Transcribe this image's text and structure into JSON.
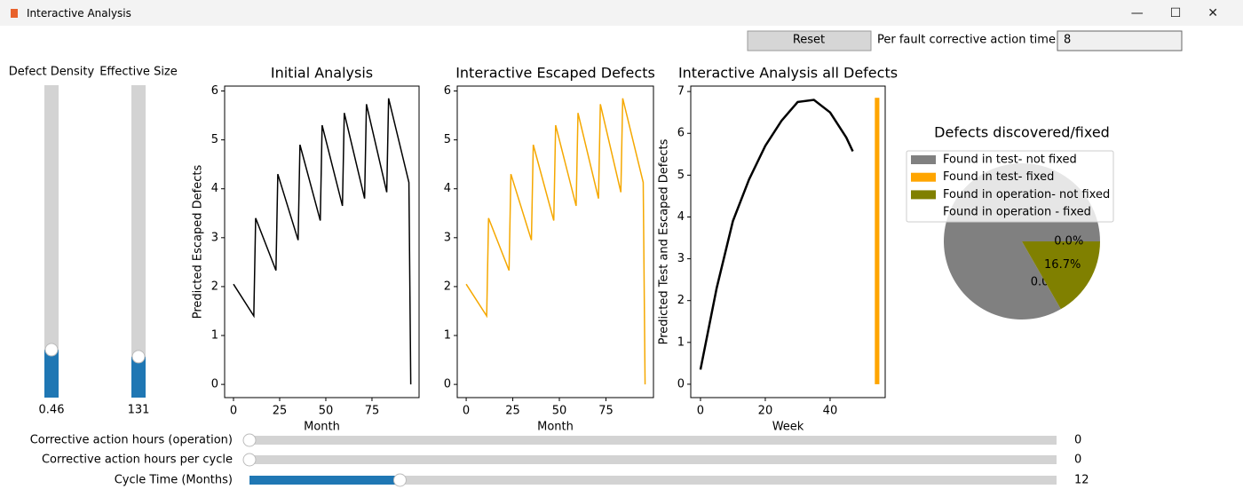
{
  "window": {
    "title": "Interactive Analysis"
  },
  "controls": {
    "reset": "Reset",
    "action_time_label": "Per fault corrective action time",
    "action_time_value": "8"
  },
  "vertical_sliders": [
    {
      "label": "Defect Density",
      "value": 0.46,
      "min": 0,
      "max": 3
    },
    {
      "label": "Effective Size",
      "value": 131,
      "min": 0,
      "max": 1000
    }
  ],
  "horizontal_sliders": [
    {
      "label": "Corrective action hours (operation)",
      "value": 0,
      "min": 0,
      "max": 100
    },
    {
      "label": "Corrective action hours per cycle",
      "value": 0,
      "min": 0,
      "max": 100
    },
    {
      "label": "Cycle Time (Months)",
      "value": 12,
      "min": 1,
      "max": 60
    }
  ],
  "chart_data": [
    {
      "type": "line",
      "title": "Initial Analysis",
      "xlabel": "Month",
      "ylabel": "Predicted Escaped Defects",
      "xlim": [
        -4.8,
        100.5
      ],
      "ylim": [
        -0.27,
        6.1
      ],
      "xticks": [
        0,
        25,
        50,
        75
      ],
      "yticks": [
        0,
        1,
        2,
        3,
        4,
        5,
        6
      ],
      "series": [
        {
          "color": "#000000",
          "x": [
            0,
            11,
            12,
            23,
            24,
            35,
            36,
            47,
            48,
            59,
            60,
            71,
            72,
            83,
            84,
            95,
            96
          ],
          "values": [
            2.05,
            1.4,
            3.4,
            2.33,
            4.3,
            2.95,
            4.9,
            3.35,
            5.3,
            3.65,
            5.55,
            3.8,
            5.73,
            3.93,
            5.85,
            4.13,
            0
          ]
        }
      ]
    },
    {
      "type": "line",
      "title": "Interactive Escaped Defects",
      "xlabel": "Month",
      "xlim": [
        -4.8,
        100.5
      ],
      "ylim": [
        -0.27,
        6.1
      ],
      "xticks": [
        0,
        25,
        50,
        75
      ],
      "yticks": [
        0,
        1,
        2,
        3,
        4,
        5,
        6
      ],
      "series": [
        {
          "color": "#f5a800",
          "x": [
            0,
            11,
            12,
            23,
            24,
            35,
            36,
            47,
            48,
            59,
            60,
            71,
            72,
            83,
            84,
            95,
            96
          ],
          "values": [
            2.05,
            1.4,
            3.4,
            2.33,
            4.3,
            2.95,
            4.9,
            3.35,
            5.3,
            3.65,
            5.55,
            3.8,
            5.73,
            3.93,
            5.85,
            4.13,
            0
          ]
        }
      ]
    },
    {
      "type": "line",
      "title": "Interactive Analysis all Defects",
      "xlabel": "Week",
      "ylabel": "Predicted Test and Escaped Defects",
      "xlim": [
        -3,
        57
      ],
      "ylim": [
        -0.32,
        7.13
      ],
      "xticks": [
        0,
        20,
        40
      ],
      "yticks": [
        0,
        1,
        2,
        3,
        4,
        5,
        6,
        7
      ],
      "series": [
        {
          "color": "#000000",
          "x": [
            0,
            5,
            10,
            15,
            20,
            25,
            30,
            35,
            40,
            45,
            47
          ],
          "values": [
            0.35,
            2.3,
            3.9,
            4.9,
            5.7,
            6.3,
            6.75,
            6.8,
            6.5,
            5.9,
            5.57
          ]
        },
        {
          "type": "bar",
          "color": "#ffa500",
          "x": [
            54.5
          ],
          "values": [
            6.85
          ]
        }
      ]
    },
    {
      "type": "pie",
      "title": "Defects discovered/fixed",
      "categories": [
        "Found in test- not fixed",
        "Found in test- fixed",
        "Found in operation- not fixed",
        "Found in operation - fixed"
      ],
      "values": [
        83.3,
        0,
        16.7,
        0
      ],
      "value_labels": [
        null,
        "0.0%",
        "16.7%",
        "0.0%"
      ],
      "colors": [
        "#808080",
        "#ffa500",
        "#808000",
        "#ffffff"
      ]
    }
  ]
}
